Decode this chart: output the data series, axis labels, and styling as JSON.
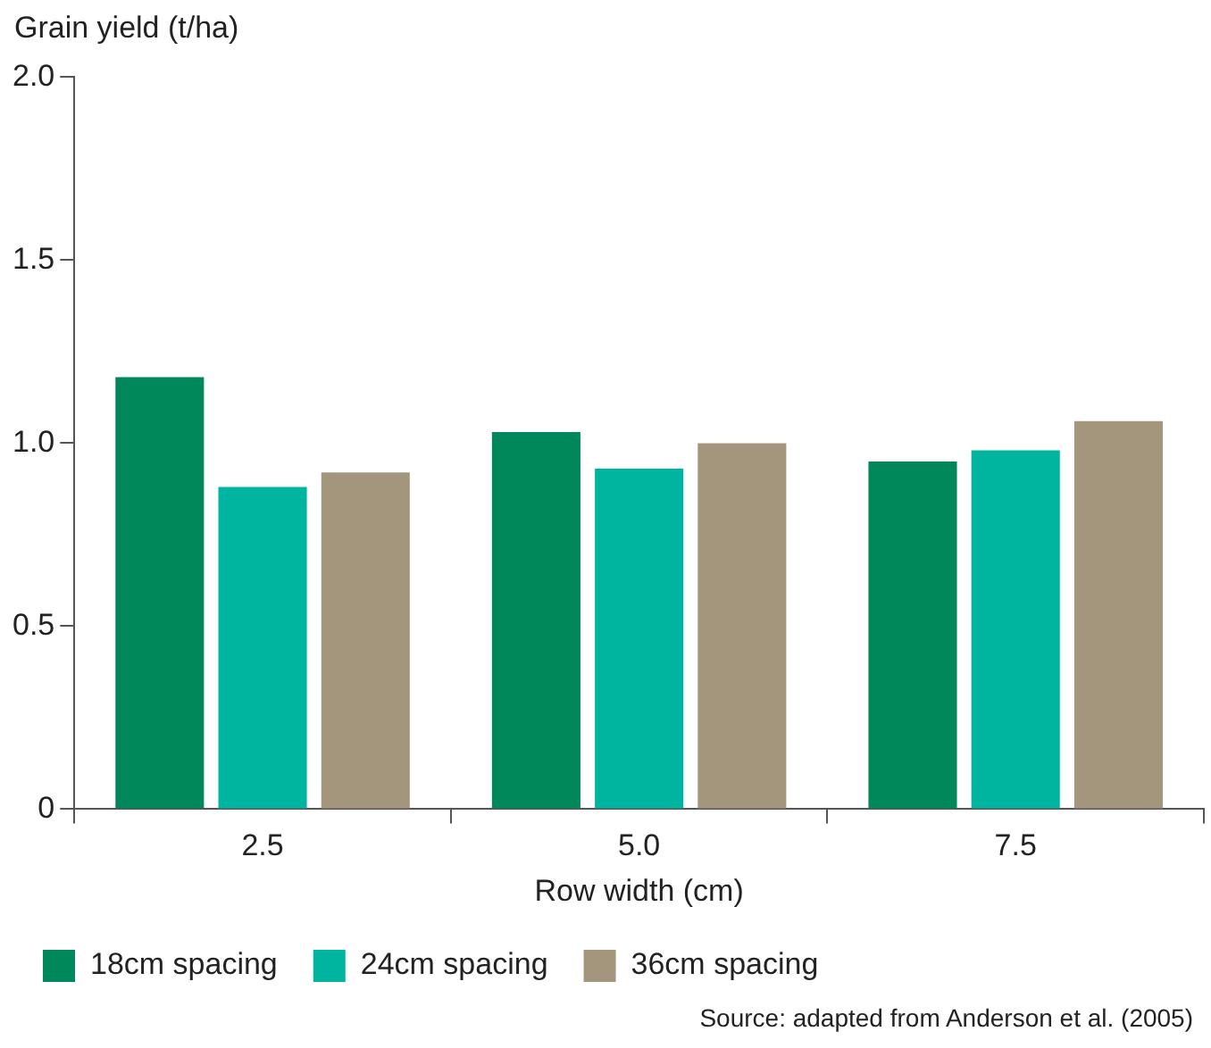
{
  "chart_data": {
    "type": "bar",
    "ylabel": "Grain yield (t/ha)",
    "xlabel": "Row width (cm)",
    "categories": [
      "2.5",
      "5.0",
      "7.5"
    ],
    "series": [
      {
        "name": "18cm spacing",
        "color": "#00875a",
        "values": [
          1.18,
          1.03,
          0.95
        ]
      },
      {
        "name": "24cm spacing",
        "color": "#00b5a0",
        "values": [
          0.88,
          0.93,
          0.98
        ]
      },
      {
        "name": "36cm spacing",
        "color": "#a4957d",
        "values": [
          0.92,
          1.0,
          1.06
        ]
      }
    ],
    "ylim": [
      0,
      2
    ],
    "yticks": [
      0,
      {
        "value": 0.5,
        "label": "0.5"
      },
      {
        "value": 1,
        "label": "1.0"
      },
      {
        "value": 1.5,
        "label": "1.5"
      },
      {
        "value": 2,
        "label": "2.0"
      }
    ],
    "grid": false,
    "legend": "bottom left",
    "annotations": [
      "Source: adapted from Anderson et al. (2005)"
    ]
  }
}
